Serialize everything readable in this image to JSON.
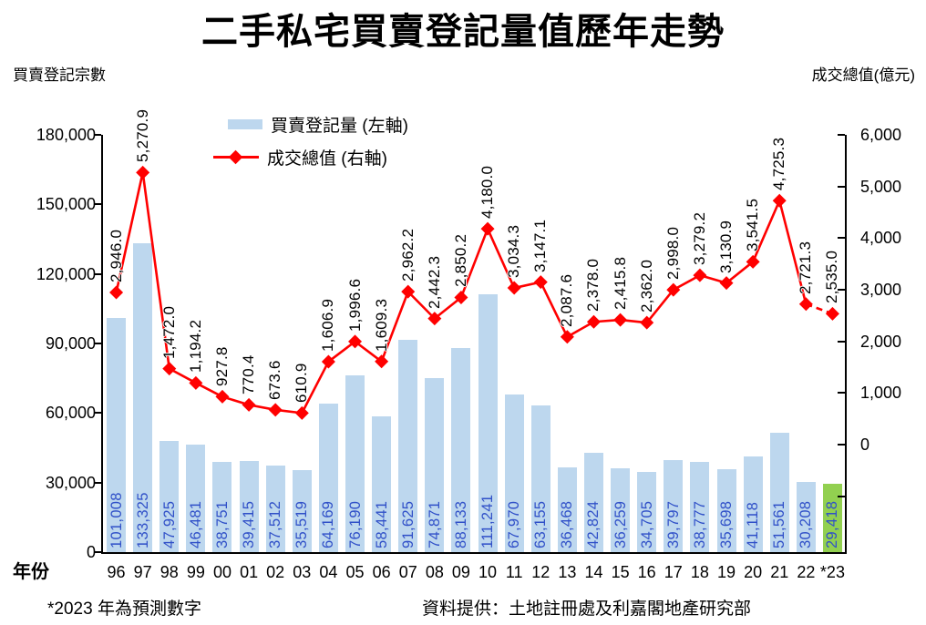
{
  "title": "二手私宅買賣登記量值歷年走勢",
  "axis_captions": {
    "left": "買賣登記宗數",
    "right": "成交總值(億元)"
  },
  "x_axis_title": "年份",
  "legend": [
    {
      "label": "買賣登記量 (左軸)",
      "type": "bar"
    },
    {
      "label": "成交總值 (右軸)",
      "type": "line"
    }
  ],
  "footnotes": {
    "left": "*2023 年為預測數字",
    "right": "資料提供：土地註冊處及利嘉閣地產研究部"
  },
  "colors": {
    "bar_fill": "#BDD7EE",
    "bar_forecast_fill": "#92D050",
    "bar_label": "#3050C8",
    "line": "#FF0000",
    "axis": "#000000"
  },
  "chart_data": {
    "type": "bar+line",
    "grid": false,
    "legend_position": "top-center",
    "categories": [
      "96",
      "97",
      "98",
      "99",
      "00",
      "01",
      "02",
      "03",
      "04",
      "05",
      "06",
      "07",
      "08",
      "09",
      "10",
      "11",
      "12",
      "13",
      "14",
      "15",
      "16",
      "17",
      "18",
      "19",
      "20",
      "21",
      "22",
      "*23"
    ],
    "series": [
      {
        "name": "買賣登記量 (左軸)",
        "type": "bar",
        "axis": "left",
        "values": [
          101008,
          133325,
          47925,
          46481,
          38751,
          39415,
          37512,
          35519,
          64169,
          76190,
          58441,
          91625,
          74871,
          88133,
          111241,
          67970,
          63155,
          36468,
          42824,
          36259,
          34705,
          39797,
          38777,
          35698,
          41118,
          51561,
          30208,
          29418
        ],
        "labels": [
          "101,008",
          "133,325",
          "47,925",
          "46,481",
          "38,751",
          "39,415",
          "37,512",
          "35,519",
          "64,169",
          "76,190",
          "58,441",
          "91,625",
          "74,871",
          "88,133",
          "111,241",
          "67,970",
          "63,155",
          "36,468",
          "42,824",
          "36,259",
          "34,705",
          "39,797",
          "38,777",
          "35,698",
          "41,118",
          "51,561",
          "30,208",
          "29,418"
        ],
        "highlight_last": true
      },
      {
        "name": "成交總值 (右軸)",
        "type": "line",
        "axis": "right",
        "values": [
          2946.0,
          5270.9,
          1472.0,
          1194.2,
          927.8,
          770.4,
          673.6,
          610.9,
          1606.9,
          1996.6,
          1609.3,
          2962.2,
          2442.3,
          2850.2,
          4180.0,
          3034.3,
          3147.1,
          2087.6,
          2378.0,
          2415.8,
          2362.0,
          2998.0,
          3279.2,
          3130.9,
          3541.5,
          4725.3,
          2721.3,
          2535.0
        ],
        "labels": [
          "2,946.0",
          "5,270.9",
          "1,472.0",
          "1,194.2",
          "927.8",
          "770.4",
          "673.6",
          "610.9",
          "1,606.9",
          "1,996.6",
          "1,609.3",
          "2,962.2",
          "2,442.3",
          "2,850.2",
          "4,180.0",
          "3,034.3",
          "3,147.1",
          "2,087.6",
          "2,378.0",
          "2,415.8",
          "2,362.0",
          "2,998.0",
          "3,279.2",
          "3,130.9",
          "3,541.5",
          "4,725.3",
          "2,721.3",
          "2,535.0"
        ],
        "dashed_last_segment": true
      }
    ],
    "left_axis": {
      "min": 0,
      "max": 180000,
      "step": 30000,
      "tick_labels_top_to_bottom": [
        "180,000",
        "150,000",
        "120,000",
        "90,000",
        "60,000",
        "30,000",
        "0"
      ]
    },
    "right_axis": {
      "min": 0,
      "max": 6000,
      "step": 1000,
      "tick_labels_top_to_bottom": [
        "6,000",
        "5,000",
        "4,000",
        "3,000",
        "2,000",
        "1,000",
        "0"
      ],
      "extra_unlabeled_ticks_below_zero": 1
    }
  }
}
